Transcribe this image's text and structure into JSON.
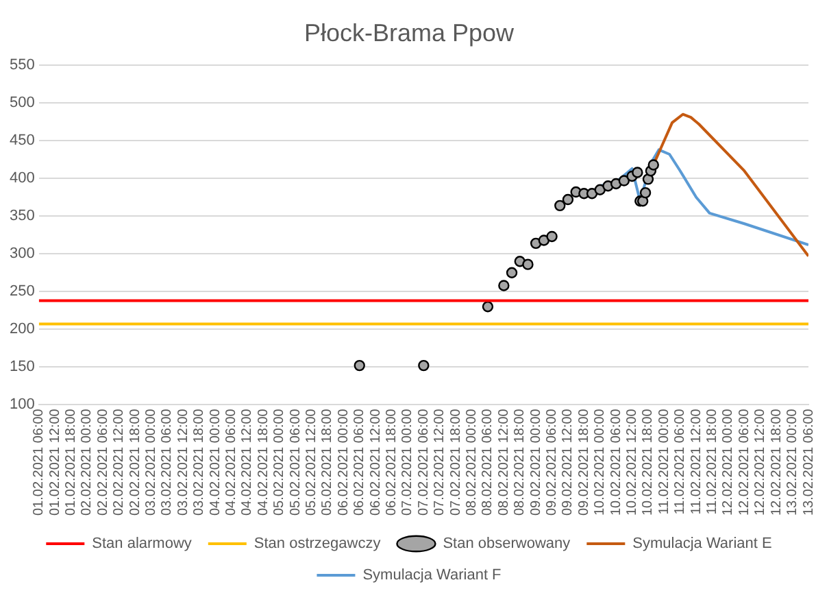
{
  "chart_data": {
    "type": "line",
    "title": "Płock-Brama Ppow",
    "xlim": [
      "2021-02-01T06:00",
      "2021-02-13T06:00"
    ],
    "xticks": [
      {
        "value": "2021-02-01T06:00",
        "label": "01.02.2021 06:00"
      },
      {
        "value": "2021-02-01T12:00",
        "label": "01.02.2021 12:00"
      },
      {
        "value": "2021-02-01T18:00",
        "label": "01.02.2021 18:00"
      },
      {
        "value": "2021-02-02T00:00",
        "label": "02.02.2021 00:00"
      },
      {
        "value": "2021-02-02T06:00",
        "label": "02.02.2021 06:00"
      },
      {
        "value": "2021-02-02T12:00",
        "label": "02.02.2021 12:00"
      },
      {
        "value": "2021-02-02T18:00",
        "label": "02.02.2021 18:00"
      },
      {
        "value": "2021-02-03T00:00",
        "label": "03.02.2021 00:00"
      },
      {
        "value": "2021-02-03T06:00",
        "label": "03.02.2021 06:00"
      },
      {
        "value": "2021-02-03T12:00",
        "label": "03.02.2021 12:00"
      },
      {
        "value": "2021-02-03T18:00",
        "label": "03.02.2021 18:00"
      },
      {
        "value": "2021-02-04T00:00",
        "label": "04.02.2021 00:00"
      },
      {
        "value": "2021-02-04T06:00",
        "label": "04.02.2021 06:00"
      },
      {
        "value": "2021-02-04T12:00",
        "label": "04.02.2021 12:00"
      },
      {
        "value": "2021-02-04T18:00",
        "label": "04.02.2021 18:00"
      },
      {
        "value": "2021-02-05T00:00",
        "label": "05.02.2021 00:00"
      },
      {
        "value": "2021-02-05T06:00",
        "label": "05.02.2021 06:00"
      },
      {
        "value": "2021-02-05T12:00",
        "label": "05.02.2021 12:00"
      },
      {
        "value": "2021-02-05T18:00",
        "label": "05.02.2021 18:00"
      },
      {
        "value": "2021-02-06T00:00",
        "label": "06.02.2021 00:00"
      },
      {
        "value": "2021-02-06T06:00",
        "label": "06.02.2021 06:00"
      },
      {
        "value": "2021-02-06T12:00",
        "label": "06.02.2021 12:00"
      },
      {
        "value": "2021-02-06T18:00",
        "label": "06.02.2021 18:00"
      },
      {
        "value": "2021-02-07T00:00",
        "label": "07.02.2021 00:00"
      },
      {
        "value": "2021-02-07T06:00",
        "label": "07.02.2021 06:00"
      },
      {
        "value": "2021-02-07T12:00",
        "label": "07.02.2021 12:00"
      },
      {
        "value": "2021-02-07T18:00",
        "label": "07.02.2021 18:00"
      },
      {
        "value": "2021-02-08T00:00",
        "label": "08.02.2021 00:00"
      },
      {
        "value": "2021-02-08T06:00",
        "label": "08.02.2021 06:00"
      },
      {
        "value": "2021-02-08T12:00",
        "label": "08.02.2021 12:00"
      },
      {
        "value": "2021-02-08T18:00",
        "label": "08.02.2021 18:00"
      },
      {
        "value": "2021-02-09T00:00",
        "label": "09.02.2021 00:00"
      },
      {
        "value": "2021-02-09T06:00",
        "label": "09.02.2021 06:00"
      },
      {
        "value": "2021-02-09T12:00",
        "label": "09.02.2021 12:00"
      },
      {
        "value": "2021-02-09T18:00",
        "label": "09.02.2021 18:00"
      },
      {
        "value": "2021-02-10T00:00",
        "label": "10.02.2021 00:00"
      },
      {
        "value": "2021-02-10T06:00",
        "label": "10.02.2021 06:00"
      },
      {
        "value": "2021-02-10T12:00",
        "label": "10.02.2021 12:00"
      },
      {
        "value": "2021-02-10T18:00",
        "label": "10.02.2021 18:00"
      },
      {
        "value": "2021-02-11T00:00",
        "label": "11.02.2021 00:00"
      },
      {
        "value": "2021-02-11T06:00",
        "label": "11.02.2021 06:00"
      },
      {
        "value": "2021-02-11T12:00",
        "label": "11.02.2021 12:00"
      },
      {
        "value": "2021-02-11T18:00",
        "label": "11.02.2021 18:00"
      },
      {
        "value": "2021-02-12T00:00",
        "label": "12.02.2021 00:00"
      },
      {
        "value": "2021-02-12T06:00",
        "label": "12.02.2021 06:00"
      },
      {
        "value": "2021-02-12T12:00",
        "label": "12.02.2021 12:00"
      },
      {
        "value": "2021-02-12T18:00",
        "label": "12.02.2021 18:00"
      },
      {
        "value": "2021-02-13T00:00",
        "label": "13.02.2021 00:00"
      },
      {
        "value": "2021-02-13T06:00",
        "label": "13.02.2021 06:00"
      }
    ],
    "ylim": [
      100,
      550
    ],
    "yticks": [
      100,
      150,
      200,
      250,
      300,
      350,
      400,
      450,
      500,
      550
    ],
    "grid": "y",
    "legend": "bottom",
    "series": [
      {
        "name": "Stan alarmowy",
        "color": "#ff0000",
        "x": [
          "2021-02-01T06:00",
          "2021-02-13T06:00"
        ],
        "values": [
          238,
          238
        ]
      },
      {
        "name": "Stan ostrzegawczy",
        "color": "#ffc000",
        "x": [
          "2021-02-01T06:00",
          "2021-02-13T06:00"
        ],
        "values": [
          207,
          207
        ]
      },
      {
        "name": "Stan obserwowany",
        "type": "scatter",
        "marker": "circle",
        "color": "#a5a5a5",
        "x": [
          "2021-02-06T06:00",
          "2021-02-07T06:00",
          "2021-02-08T06:00",
          "2021-02-08T12:00",
          "2021-02-08T15:00",
          "2021-02-08T18:00",
          "2021-02-08T21:00",
          "2021-02-09T00:00",
          "2021-02-09T03:00",
          "2021-02-09T06:00",
          "2021-02-09T09:00",
          "2021-02-09T12:00",
          "2021-02-09T15:00",
          "2021-02-09T18:00",
          "2021-02-09T21:00",
          "2021-02-10T00:00",
          "2021-02-10T03:00",
          "2021-02-10T06:00",
          "2021-02-10T09:00",
          "2021-02-10T12:00",
          "2021-02-10T14:00",
          "2021-02-10T15:00",
          "2021-02-10T16:00",
          "2021-02-10T17:00",
          "2021-02-10T18:00",
          "2021-02-10T19:00",
          "2021-02-10T20:00"
        ],
        "values": [
          152,
          152,
          230,
          258,
          275,
          290,
          286,
          314,
          318,
          323,
          364,
          372,
          382,
          380,
          380,
          385,
          390,
          393,
          397,
          403,
          408,
          370,
          370,
          381,
          399,
          410,
          418
        ]
      },
      {
        "name": "Symulacja Wariant E",
        "color": "#c55a11",
        "x": [
          "2021-02-10T20:00",
          "2021-02-11T00:00",
          "2021-02-11T03:00",
          "2021-02-11T07:00",
          "2021-02-11T10:00",
          "2021-02-11T13:00",
          "2021-02-12T06:00",
          "2021-02-13T06:00"
        ],
        "values": [
          418,
          450,
          474,
          485,
          481,
          472,
          410,
          297
        ]
      },
      {
        "name": "Symulacja Wariant F",
        "color": "#5b9bd5",
        "x": [
          "2021-02-10T00:00",
          "2021-02-10T06:00",
          "2021-02-10T12:00",
          "2021-02-10T15:00",
          "2021-02-10T19:00",
          "2021-02-10T22:00",
          "2021-02-11T02:00",
          "2021-02-11T06:00",
          "2021-02-11T12:00",
          "2021-02-11T17:00",
          "2021-02-12T06:00",
          "2021-02-13T06:00"
        ],
        "values": [
          390,
          395,
          413,
          370,
          420,
          438,
          432,
          410,
          375,
          354,
          340,
          312
        ]
      }
    ]
  }
}
